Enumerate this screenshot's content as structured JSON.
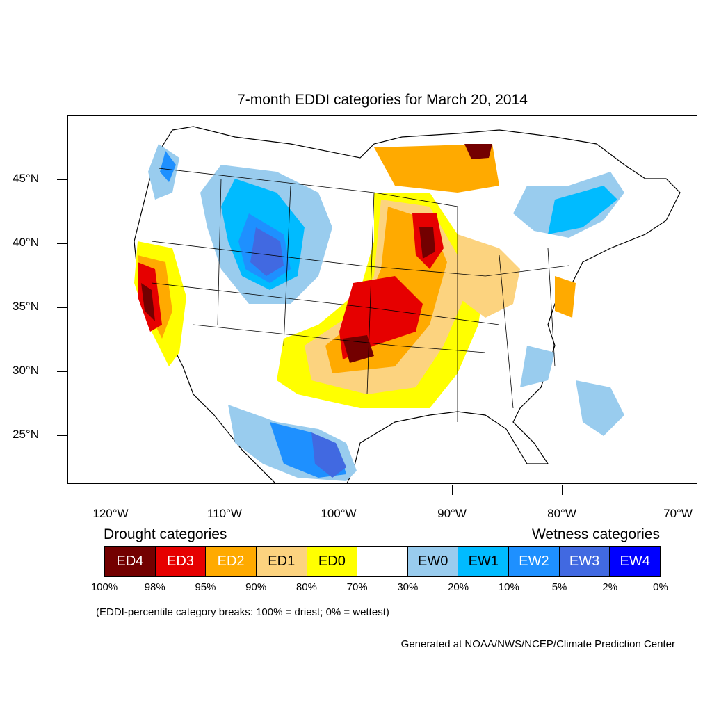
{
  "title": "7-month EDDI categories for March 20, 2014",
  "latitude_labels": [
    "45°N",
    "40°N",
    "35°N",
    "30°N",
    "25°N"
  ],
  "longitude_labels": [
    "120°W",
    "110°W",
    "100°W",
    "90°W",
    "80°W",
    "70°W"
  ],
  "legend": {
    "drought_heading": "Drought categories",
    "wetness_heading": "Wetness categories",
    "categories": [
      {
        "label": "ED4",
        "color": "#730000",
        "text_color": "#ffffff"
      },
      {
        "label": "ED3",
        "color": "#e60000",
        "text_color": "#ffffff"
      },
      {
        "label": "ED2",
        "color": "#ffaa00",
        "text_color": "#ffffff"
      },
      {
        "label": "ED1",
        "color": "#fcd37f",
        "text_color": "#000000"
      },
      {
        "label": "ED0",
        "color": "#ffff00",
        "text_color": "#000000"
      },
      {
        "label": "",
        "color": "#ffffff",
        "text_color": "#000000"
      },
      {
        "label": "EW0",
        "color": "#99ccee",
        "text_color": "#000000"
      },
      {
        "label": "EW1",
        "color": "#00bbff",
        "text_color": "#000000"
      },
      {
        "label": "EW2",
        "color": "#1e90ff",
        "text_color": "#ffffff"
      },
      {
        "label": "EW3",
        "color": "#4169e1",
        "text_color": "#ffffff"
      },
      {
        "label": "EW4",
        "color": "#0000ff",
        "text_color": "#ffffff"
      }
    ],
    "percentile_breaks": [
      "100%",
      "98%",
      "95%",
      "90%",
      "80%",
      "70%",
      "30%",
      "20%",
      "10%",
      "5%",
      "2%",
      "0%"
    ]
  },
  "footnote": "(EDDI-percentile category breaks: 100% = driest; 0% = wettest)",
  "credit": "Generated at NOAA/NWS/NCEP/Climate Prediction Center"
}
